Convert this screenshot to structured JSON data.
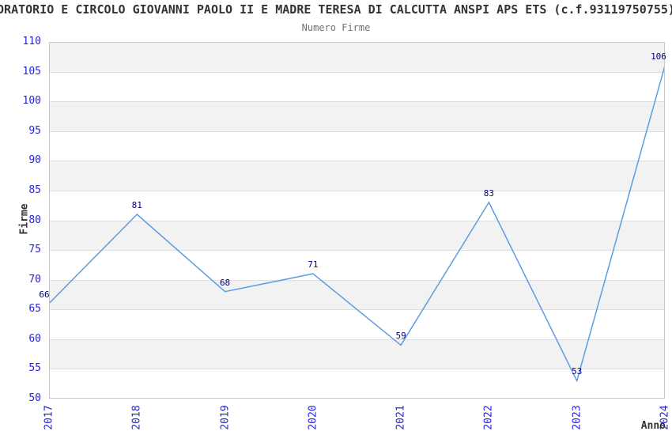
{
  "header": {
    "title": "ORATORIO E CIRCOLO GIOVANNI PAOLO II E MADRE TERESA DI CALCUTTA ANSPI APS ETS (c.f.93119750755)",
    "subtitle": "Numero Firme"
  },
  "chart_data": {
    "type": "line",
    "title": "Numero Firme",
    "x": [
      2017,
      2018,
      2019,
      2020,
      2021,
      2022,
      2023,
      2024
    ],
    "categories": [
      "2017",
      "2018",
      "2019",
      "2020",
      "2021",
      "2022",
      "2023",
      "2024"
    ],
    "values": [
      66,
      81,
      68,
      71,
      59,
      83,
      53,
      106
    ],
    "xlabel": "Anno",
    "ylabel": "Firme",
    "ylim": [
      50,
      110
    ],
    "ytick_step": 5,
    "yticks": [
      50,
      55,
      60,
      65,
      70,
      75,
      80,
      85,
      90,
      95,
      100,
      105,
      110
    ],
    "grid": true,
    "legend": "none",
    "data_labels_visible": true
  },
  "colors": {
    "line": "#5c9ce0",
    "tick_label": "#2525d4",
    "data_label": "#000080",
    "band_even": "#f2f2f2",
    "band_odd": "#ffffff",
    "gridline": "#dedede",
    "plot_border": "#c8c8c8",
    "title": "#333333",
    "subtitle": "#737373"
  }
}
